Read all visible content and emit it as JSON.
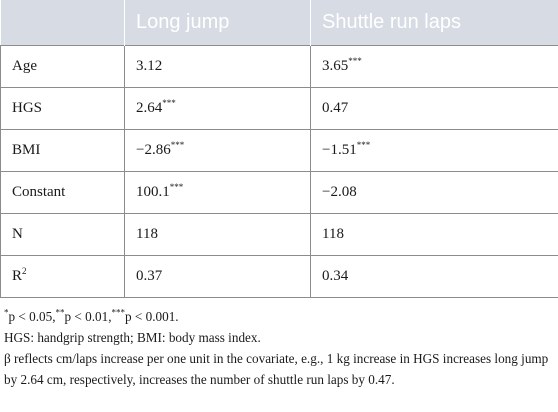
{
  "table": {
    "headers": [
      "",
      "Long jump",
      "Shuttle run laps"
    ],
    "rows": [
      {
        "label": "Age",
        "cells": [
          {
            "value": "3.12",
            "sig": ""
          },
          {
            "value": "3.65",
            "sig": "***"
          }
        ]
      },
      {
        "label": "HGS",
        "cells": [
          {
            "value": "2.64",
            "sig": "***"
          },
          {
            "value": "0.47",
            "sig": ""
          }
        ]
      },
      {
        "label": "BMI",
        "cells": [
          {
            "value": "−2.86",
            "sig": "***"
          },
          {
            "value": "−1.51",
            "sig": "***"
          }
        ]
      },
      {
        "label": "Constant",
        "cells": [
          {
            "value": "100.1",
            "sig": "***"
          },
          {
            "value": "−2.08",
            "sig": ""
          }
        ]
      },
      {
        "label": "N",
        "cells": [
          {
            "value": "118",
            "sig": ""
          },
          {
            "value": "118",
            "sig": ""
          }
        ]
      },
      {
        "label_base": "R",
        "label_sup": "2",
        "cells": [
          {
            "value": "0.37",
            "sig": ""
          },
          {
            "value": "0.34",
            "sig": ""
          }
        ]
      }
    ]
  },
  "notes": {
    "significance": [
      {
        "sup": "*",
        "text": "p < 0.05,"
      },
      {
        "sup": "**",
        "text": "p < 0.01,"
      },
      {
        "sup": "***",
        "text": "p < 0.001."
      }
    ],
    "abbreviations": "HGS: handgrip strength; BMI: body mass index.",
    "interpretation": "β reflects cm/laps increase per one unit in the covariate, e.g., 1 kg increase in HGS increases long jump by 2.64 cm, respectively, increases the number of shuttle run laps by 0.47."
  }
}
